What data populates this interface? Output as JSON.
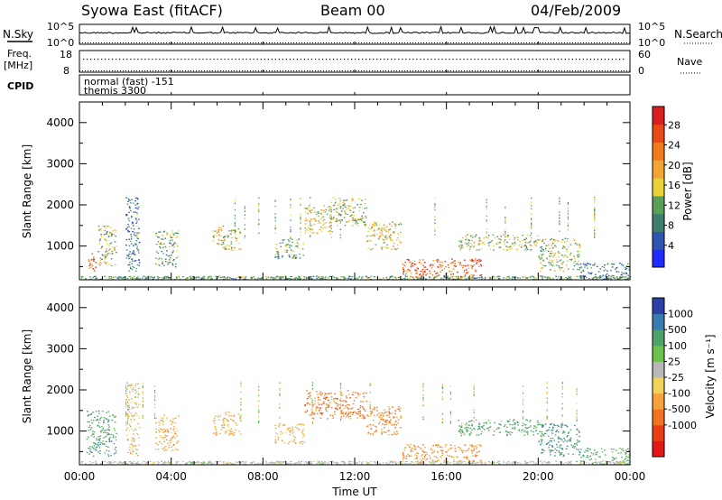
{
  "header": {
    "title": "Syowa East (fitACF)",
    "beam": "Beam 00",
    "date": "04/Feb/2009"
  },
  "status_panels": {
    "nsky_label": "N.Sky",
    "nsky_ticks": [
      "10^5",
      "10^0"
    ],
    "nsearch_label": "N.Search",
    "nsearch_ticks": [
      "10^5",
      "10^0"
    ],
    "freq_label_line1": "Freq.",
    "freq_label_line2": "[MHz]",
    "freq_ticks": [
      "18",
      "8"
    ],
    "nave_label": "Nave",
    "nave_ticks": [
      "60",
      "0"
    ],
    "cpid_label": "CPID",
    "cpid_line1": "normal (fast) -151",
    "cpid_line2": "themis 3300"
  },
  "chart_data": [
    {
      "type": "heatmap",
      "name": "Power panel",
      "ylabel": "Slant Range [km]",
      "yticks": [
        "1000",
        "2000",
        "3000",
        "4000"
      ],
      "ylim": [
        180,
        4500
      ],
      "xlim_hours": [
        0,
        24
      ],
      "colorbar_label": "Power [dB]",
      "colorbar_ticks": [
        "4",
        "8",
        "12",
        "16",
        "20",
        "24",
        "28"
      ],
      "colorbar_colors": [
        "#1f2bff",
        "#2e55b0",
        "#3d7f6e",
        "#5aa05a",
        "#e8d23a",
        "#f3a533",
        "#f47a1e",
        "#e84a16",
        "#d81e1e"
      ],
      "scatter_regions": [
        {
          "t": [
            0.3,
            0.7
          ],
          "r": [
            400,
            900
          ],
          "p": 25
        },
        {
          "t": [
            0.8,
            1.6
          ],
          "r": [
            500,
            1500
          ],
          "p": 14
        },
        {
          "t": [
            2.0,
            2.6
          ],
          "r": [
            400,
            2200
          ],
          "p": 8
        },
        {
          "t": [
            3.3,
            4.3
          ],
          "r": [
            500,
            1400
          ],
          "p": 12
        },
        {
          "t": [
            5.8,
            7.0
          ],
          "r": [
            900,
            1500
          ],
          "p": 16
        },
        {
          "t": [
            8.5,
            9.8
          ],
          "r": [
            700,
            1200
          ],
          "p": 12
        },
        {
          "t": [
            9.8,
            11.0
          ],
          "r": [
            1300,
            2000
          ],
          "p": 18
        },
        {
          "t": [
            11.0,
            12.5
          ],
          "r": [
            1500,
            2200
          ],
          "p": 14
        },
        {
          "t": [
            12.5,
            14.0
          ],
          "r": [
            900,
            1600
          ],
          "p": 16
        },
        {
          "t": [
            14.0,
            17.5
          ],
          "r": [
            250,
            700
          ],
          "p": 26
        },
        {
          "t": [
            16.5,
            20.0
          ],
          "r": [
            900,
            1300
          ],
          "p": 14
        },
        {
          "t": [
            20.0,
            21.8
          ],
          "r": [
            400,
            1200
          ],
          "p": 14
        },
        {
          "t": [
            21.8,
            24.0
          ],
          "r": [
            200,
            600
          ],
          "p": 8
        }
      ]
    },
    {
      "type": "heatmap",
      "name": "Velocity panel",
      "ylabel": "Slant Range [km]",
      "yticks": [
        "1000",
        "2000",
        "3000",
        "4000"
      ],
      "ylim": [
        180,
        4500
      ],
      "xlim_hours": [
        0,
        24
      ],
      "xticks": [
        "00:00",
        "04:00",
        "08:00",
        "12:00",
        "16:00",
        "20:00",
        "00:00"
      ],
      "xlabel": "Time UT",
      "colorbar_label": "Velocity [m s⁻¹]",
      "colorbar_ticks": [
        "1000",
        "500",
        "100",
        "25",
        "-25",
        "-100",
        "-500",
        "-1000"
      ],
      "colorbar_colors": [
        "#2b3fa6",
        "#3a7bb0",
        "#4ea36d",
        "#6cc24a",
        "#b8b8b8",
        "#f2d35a",
        "#f5a33a",
        "#f2731f",
        "#e83b16",
        "#e01818"
      ],
      "scatter_regions": [
        {
          "t": [
            0.3,
            1.6
          ],
          "r": [
            400,
            1500
          ],
          "v": 300
        },
        {
          "t": [
            2.0,
            2.6
          ],
          "r": [
            400,
            2200
          ],
          "v": -80
        },
        {
          "t": [
            3.3,
            4.3
          ],
          "r": [
            500,
            1400
          ],
          "v": -300
        },
        {
          "t": [
            5.8,
            7.0
          ],
          "r": [
            900,
            1500
          ],
          "v": -200
        },
        {
          "t": [
            8.5,
            9.8
          ],
          "r": [
            700,
            1200
          ],
          "v": -150
        },
        {
          "t": [
            9.8,
            12.5
          ],
          "r": [
            1300,
            2000
          ],
          "v": -700
        },
        {
          "t": [
            12.5,
            14.0
          ],
          "r": [
            900,
            1600
          ],
          "v": -600
        },
        {
          "t": [
            14.0,
            17.5
          ],
          "r": [
            250,
            700
          ],
          "v": -400
        },
        {
          "t": [
            16.5,
            20.0
          ],
          "r": [
            900,
            1300
          ],
          "v": 200
        },
        {
          "t": [
            20.0,
            21.8
          ],
          "r": [
            400,
            1200
          ],
          "v": 400
        },
        {
          "t": [
            21.8,
            24.0
          ],
          "r": [
            200,
            600
          ],
          "v": 200
        }
      ]
    }
  ]
}
